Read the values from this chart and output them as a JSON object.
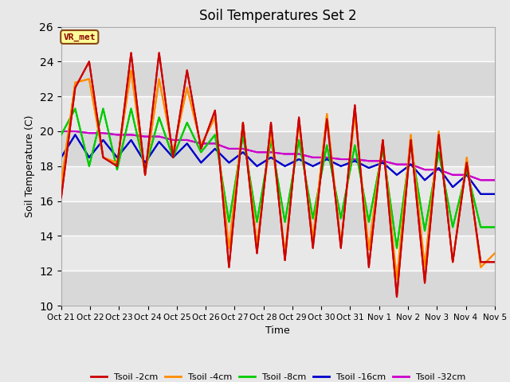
{
  "title": "Soil Temperatures Set 2",
  "xlabel": "Time",
  "ylabel": "Soil Temperature (C)",
  "ylim": [
    10,
    26
  ],
  "yticks": [
    10,
    12,
    14,
    16,
    18,
    20,
    22,
    24,
    26
  ],
  "xtick_labels": [
    "Oct 21",
    "Oct 22",
    "Oct 23",
    "Oct 24",
    "Oct 25",
    "Oct 26",
    "Oct 27",
    "Oct 28",
    "Oct 29",
    "Oct 30",
    "Oct 31",
    "Nov 1",
    "Nov 2",
    "Nov 3",
    "Nov 4",
    "Nov 5"
  ],
  "background_color": "#e8e8e8",
  "plot_bg_color": "#dcdcdc",
  "annotation_text": "VR_met",
  "annotation_box_color": "#ffff99",
  "annotation_box_edge": "#8B4513",
  "annotation_text_color": "#8B0000",
  "colors": {
    "Tsoil -2cm": "#cc0000",
    "Tsoil -4cm": "#ff8c00",
    "Tsoil -8cm": "#00cc00",
    "Tsoil -16cm": "#0000cc",
    "Tsoil -32cm": "#cc00cc"
  },
  "legend_labels": [
    "Tsoil -2cm",
    "Tsoil -4cm",
    "Tsoil -8cm",
    "Tsoil -16cm",
    "Tsoil -32cm"
  ],
  "t2cm": [
    16.2,
    22.5,
    24.0,
    18.5,
    18.0,
    24.5,
    17.5,
    24.5,
    18.5,
    23.5,
    19.0,
    21.2,
    12.2,
    20.5,
    13.0,
    20.5,
    12.6,
    20.8,
    13.3,
    20.7,
    13.3,
    21.5,
    12.2,
    19.5,
    10.5,
    19.5,
    11.3,
    19.8,
    12.5,
    18.2,
    12.5,
    12.5
  ],
  "t4cm": [
    17.0,
    22.8,
    23.0,
    18.5,
    18.2,
    23.5,
    17.5,
    23.0,
    18.8,
    22.5,
    19.2,
    20.8,
    13.3,
    20.5,
    13.5,
    20.0,
    13.0,
    20.5,
    13.8,
    21.0,
    13.5,
    21.0,
    13.2,
    19.5,
    11.5,
    19.8,
    12.2,
    20.0,
    12.5,
    18.5,
    12.2,
    13.0
  ],
  "t8cm": [
    19.8,
    21.3,
    18.0,
    21.3,
    17.8,
    21.3,
    17.8,
    20.8,
    18.5,
    20.5,
    18.8,
    19.8,
    14.8,
    19.8,
    14.8,
    19.5,
    14.8,
    19.5,
    15.0,
    19.2,
    15.0,
    19.2,
    14.8,
    19.0,
    13.3,
    19.2,
    14.3,
    18.8,
    14.5,
    17.8,
    14.5,
    14.5
  ],
  "t16cm": [
    18.5,
    19.8,
    18.5,
    19.5,
    18.5,
    19.5,
    18.2,
    19.4,
    18.5,
    19.3,
    18.2,
    19.0,
    18.2,
    18.8,
    18.0,
    18.5,
    18.0,
    18.4,
    18.0,
    18.4,
    18.0,
    18.3,
    17.9,
    18.2,
    17.5,
    18.1,
    17.2,
    17.9,
    16.8,
    17.5,
    16.4,
    16.4
  ],
  "t32cm": [
    20.0,
    20.0,
    19.9,
    19.9,
    19.8,
    19.8,
    19.7,
    19.7,
    19.5,
    19.5,
    19.3,
    19.3,
    19.0,
    19.0,
    18.8,
    18.8,
    18.7,
    18.7,
    18.5,
    18.5,
    18.4,
    18.4,
    18.3,
    18.3,
    18.1,
    18.1,
    17.8,
    17.8,
    17.5,
    17.5,
    17.2,
    17.2
  ]
}
